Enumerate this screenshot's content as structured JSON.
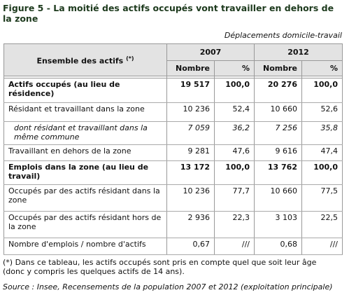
{
  "header": {
    "title": "Figure 5 - La moitié des actifs occupés vont travailler en dehors de la zone",
    "subtitle": "Déplacements domicile-travail"
  },
  "table": {
    "corner": "Ensemble des actifs",
    "corner_note": "(*)",
    "years": [
      "2007",
      "2012"
    ],
    "subheaders": [
      "Nombre",
      "%",
      "Nombre",
      "%"
    ],
    "rows": [
      {
        "label": "Actifs occupés (au lieu de résidence)",
        "cells": [
          "19 517",
          "100,0",
          "20 276",
          "100,0"
        ],
        "style": "bold"
      },
      {
        "label": "Résidant et travaillant dans la zone",
        "cells": [
          "10 236",
          "52,4",
          "10 660",
          "52,6"
        ],
        "style": "normal"
      },
      {
        "label": "dont résidant et travaillant dans la même commune",
        "cells": [
          "7 059",
          "36,2",
          "7 256",
          "35,8"
        ],
        "style": "italic"
      },
      {
        "label": "Travaillant en dehors de la zone",
        "cells": [
          "9 281",
          "47,6",
          "9 616",
          "47,4"
        ],
        "style": "normal"
      },
      {
        "label": "Emplois dans la zone (au lieu de travail)",
        "cells": [
          "13 172",
          "100,0",
          "13 762",
          "100,0"
        ],
        "style": "bold"
      },
      {
        "label": "Occupés par des actifs résidant dans la zone",
        "cells": [
          "10 236",
          "77,7",
          "10 660",
          "77,5"
        ],
        "style": "normal"
      },
      {
        "label": "Occupés par des actifs résidant hors de la zone",
        "cells": [
          "2 936",
          "22,3",
          "3 103",
          "22,5"
        ],
        "style": "normal"
      },
      {
        "label": "Nombre d'emplois / nombre d'actifs",
        "cells": [
          "0,67",
          "///",
          "0,68",
          "///"
        ],
        "style": "normal"
      }
    ]
  },
  "footer": {
    "note": "(*) Dans ce tableau, les actifs occupés sont pris en compte quel que soit leur âge (donc y compris les quelques actifs de 14 ans).",
    "source": "Source : Insee, Recensements de la population 2007 et 2012 (exploitation principale)"
  }
}
